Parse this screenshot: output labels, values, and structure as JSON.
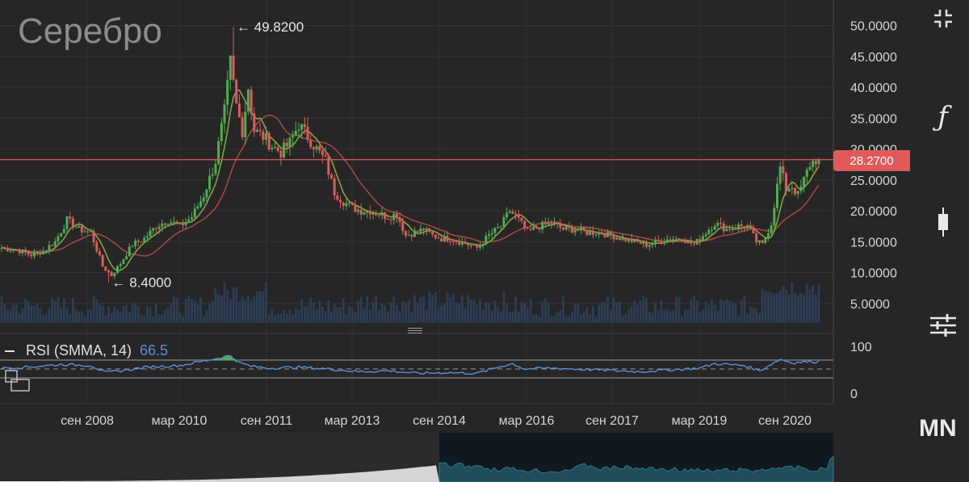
{
  "title": "Серебро",
  "timeframe": "MN",
  "last_price_label": "28.2700",
  "last_price_value": 28.27,
  "rsi_legend": {
    "name": "RSI (SMMA, 14)",
    "value": "66.5"
  },
  "icons": {
    "collapse": "collapse-icon",
    "function": "function-icon",
    "candle": "candlestick-icon",
    "settings": "settings-sliders-icon",
    "copy": "copy-icon"
  },
  "colors": {
    "bg": "#262626",
    "up": "#4caf50",
    "down": "#e05a5a",
    "ma_fast": "#8aa048",
    "ma_slow": "#a04848",
    "volume": "#2c3e56",
    "rsi": "#5b8fd6",
    "price_line": "#e05a5a"
  },
  "chart_data": {
    "type": "candlestick",
    "price_axis": {
      "ticks": [
        "50.0000",
        "45.0000",
        "40.0000",
        "35.0000",
        "30.0000",
        "25.0000",
        "20.0000",
        "15.0000",
        "10.0000",
        "5.0000"
      ],
      "ylim": [
        0,
        53
      ]
    },
    "rsi_axis": {
      "ticks": [
        "100",
        "0"
      ],
      "levels": [
        70,
        30
      ],
      "mid": 50
    },
    "x_labels": [
      "сен 2008",
      "мар 2010",
      "сен 2011",
      "мар 2013",
      "сен 2014",
      "мар 2016",
      "сен 2017",
      "мар 2019",
      "сен 2020"
    ],
    "annotations": [
      {
        "label": "49.8200",
        "value": 49.82
      },
      {
        "label": "8.4000",
        "value": 8.4
      }
    ],
    "price_anchors": [
      [
        0,
        14.0
      ],
      [
        6,
        13.5
      ],
      [
        10,
        12.8
      ],
      [
        14,
        13.5
      ],
      [
        18,
        15.0
      ],
      [
        22,
        18.5
      ],
      [
        26,
        17.0
      ],
      [
        30,
        16.5
      ],
      [
        34,
        11.0
      ],
      [
        37,
        9.5
      ],
      [
        40,
        11.5
      ],
      [
        44,
        14.5
      ],
      [
        48,
        15.5
      ],
      [
        52,
        17.5
      ],
      [
        56,
        18.5
      ],
      [
        60,
        17.5
      ],
      [
        64,
        19.0
      ],
      [
        68,
        22.5
      ],
      [
        72,
        28.0
      ],
      [
        75,
        36.0
      ],
      [
        77,
        44.0
      ],
      [
        79,
        37.0
      ],
      [
        81,
        33.0
      ],
      [
        83,
        40.0
      ],
      [
        85,
        33.0
      ],
      [
        88,
        32.0
      ],
      [
        91,
        30.5
      ],
      [
        94,
        29.5
      ],
      [
        97,
        31.0
      ],
      [
        100,
        34.0
      ],
      [
        103,
        32.0
      ],
      [
        106,
        30.0
      ],
      [
        109,
        28.0
      ],
      [
        112,
        23.0
      ],
      [
        115,
        21.5
      ],
      [
        118,
        20.5
      ],
      [
        121,
        20.0
      ],
      [
        124,
        20.0
      ],
      [
        127,
        19.5
      ],
      [
        130,
        19.0
      ],
      [
        133,
        19.5
      ],
      [
        136,
        16.0
      ],
      [
        139,
        16.5
      ],
      [
        142,
        17.0
      ],
      [
        145,
        16.0
      ],
      [
        148,
        15.5
      ],
      [
        151,
        15.5
      ],
      [
        154,
        15.0
      ],
      [
        157,
        14.5
      ],
      [
        160,
        14.0
      ],
      [
        164,
        16.0
      ],
      [
        168,
        17.5
      ],
      [
        171,
        20.0
      ],
      [
        174,
        18.5
      ],
      [
        177,
        16.5
      ],
      [
        181,
        17.5
      ],
      [
        185,
        18.0
      ],
      [
        189,
        17.0
      ],
      [
        193,
        17.0
      ],
      [
        197,
        16.5
      ],
      [
        201,
        16.5
      ],
      [
        205,
        16.0
      ],
      [
        209,
        15.5
      ],
      [
        213,
        15.0
      ],
      [
        217,
        14.5
      ],
      [
        221,
        15.0
      ],
      [
        225,
        15.5
      ],
      [
        229,
        15.5
      ],
      [
        233,
        14.5
      ],
      [
        236,
        16.0
      ],
      [
        240,
        18.0
      ],
      [
        244,
        17.0
      ],
      [
        248,
        17.5
      ],
      [
        251,
        17.5
      ],
      [
        254,
        15.0
      ],
      [
        256,
        14.5
      ],
      [
        259,
        18.0
      ],
      [
        262,
        27.0
      ],
      [
        264,
        23.5
      ],
      [
        266,
        24.0
      ],
      [
        268,
        22.5
      ],
      [
        270,
        25.0
      ],
      [
        272,
        27.5
      ],
      [
        274,
        28.27
      ]
    ],
    "high_low_extremes": [
      {
        "index": 78,
        "high": 49.82
      },
      {
        "index": 36,
        "low": 8.4
      }
    ],
    "rsi_anchors": [
      [
        0,
        52
      ],
      [
        10,
        55
      ],
      [
        20,
        60
      ],
      [
        30,
        58
      ],
      [
        35,
        42
      ],
      [
        40,
        46
      ],
      [
        50,
        55
      ],
      [
        60,
        58
      ],
      [
        68,
        68
      ],
      [
        74,
        76
      ],
      [
        77,
        80
      ],
      [
        80,
        64
      ],
      [
        84,
        56
      ],
      [
        90,
        52
      ],
      [
        100,
        54
      ],
      [
        110,
        50
      ],
      [
        120,
        44
      ],
      [
        130,
        46
      ],
      [
        140,
        40
      ],
      [
        150,
        42
      ],
      [
        160,
        40
      ],
      [
        168,
        56
      ],
      [
        172,
        62
      ],
      [
        176,
        50
      ],
      [
        185,
        52
      ],
      [
        200,
        48
      ],
      [
        215,
        44
      ],
      [
        225,
        48
      ],
      [
        235,
        52
      ],
      [
        240,
        62
      ],
      [
        250,
        58
      ],
      [
        255,
        46
      ],
      [
        262,
        72
      ],
      [
        266,
        64
      ],
      [
        270,
        66
      ],
      [
        274,
        66.5
      ]
    ]
  }
}
